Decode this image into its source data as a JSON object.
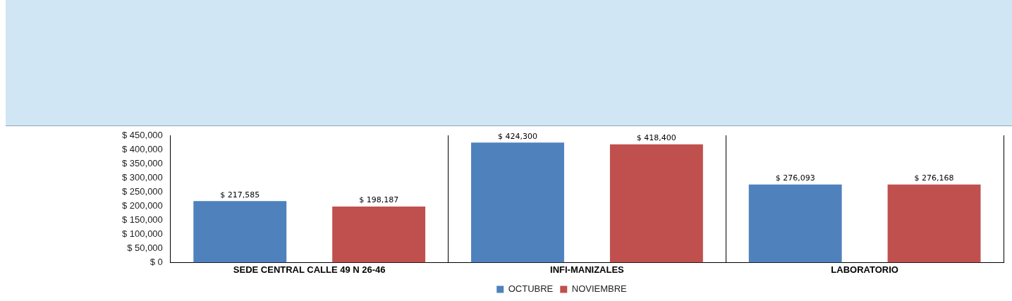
{
  "chart_data": {
    "type": "bar",
    "categories": [
      "SEDE CENTRAL CALLE 49 N 26-46",
      "INFI-MANIZALES",
      "LABORATORIO"
    ],
    "series": [
      {
        "name": "OCTUBRE",
        "color": "#4f81bd",
        "values": [
          217585,
          424300,
          276093
        ],
        "value_labels": [
          "$ 217,585",
          "$ 424,300",
          "$ 276,093"
        ]
      },
      {
        "name": "NOVIEMBRE",
        "color": "#c0504d",
        "values": [
          198187,
          418400,
          276168
        ],
        "value_labels": [
          "$ 198,187",
          "$ 418,400",
          "$ 276,168"
        ]
      }
    ],
    "ylim": [
      0,
      450000
    ],
    "yticks": [
      {
        "value": 0,
        "label": "$ 0"
      },
      {
        "value": 50000,
        "label": "$ 50,000"
      },
      {
        "value": 100000,
        "label": "$ 100,000"
      },
      {
        "value": 150000,
        "label": "$ 150,000"
      },
      {
        "value": 200000,
        "label": "$ 200,000"
      },
      {
        "value": 250000,
        "label": "$ 250,000"
      },
      {
        "value": 300000,
        "label": "$ 300,000"
      },
      {
        "value": 350000,
        "label": "$ 350,000"
      },
      {
        "value": 400000,
        "label": "$ 400,000"
      },
      {
        "value": 450000,
        "label": "$ 450,000"
      }
    ],
    "grid": "x",
    "legend": "bottom"
  }
}
